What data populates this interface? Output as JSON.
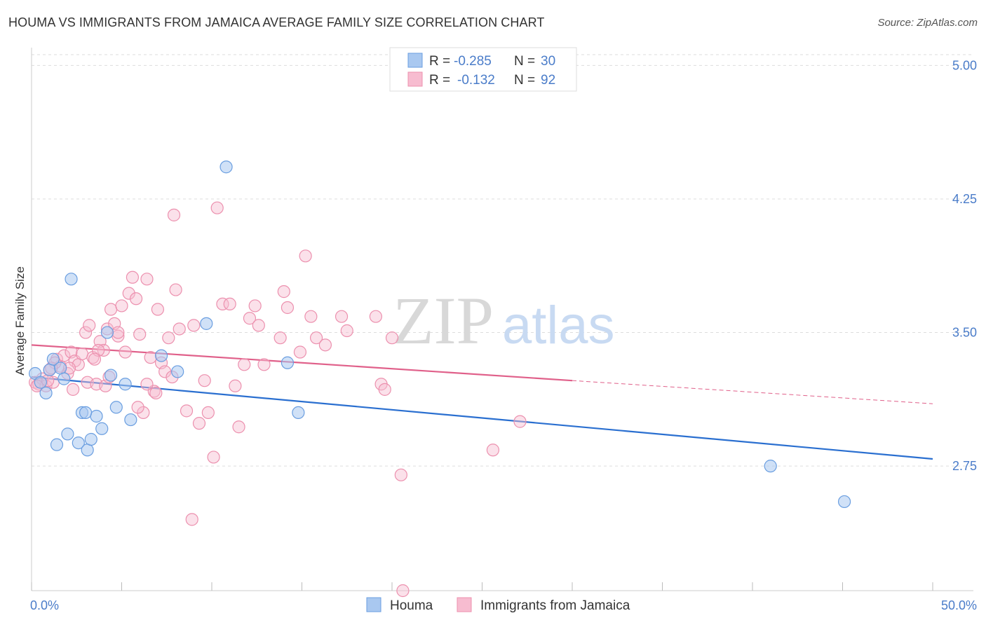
{
  "header": {
    "title": "HOUMA VS IMMIGRANTS FROM JAMAICA AVERAGE FAMILY SIZE CORRELATION CHART",
    "source": "Source: ZipAtlas.com"
  },
  "watermark": {
    "zip": "ZIP",
    "atlas": "atlas"
  },
  "colors": {
    "houma_fill": "#a9c8f0",
    "houma_stroke": "#6a9ee0",
    "houma_line": "#2a6fd0",
    "jamaica_fill": "#f7bcd0",
    "jamaica_stroke": "#ec90ae",
    "jamaica_line": "#e0608a",
    "grid": "#dddddd",
    "axis_text": "#4a7cc9"
  },
  "legend": {
    "houma": {
      "r_label": "R =",
      "r_value": "-0.285",
      "n_label": "N =",
      "n_value": "30"
    },
    "jamaica": {
      "r_label": "R =",
      "r_value": "-0.132",
      "n_label": "N =",
      "n_value": "92"
    }
  },
  "chart_data": {
    "type": "scatter",
    "title": "HOUMA VS IMMIGRANTS FROM JAMAICA AVERAGE FAMILY SIZE CORRELATION CHART",
    "xlabel": "",
    "ylabel": "Average Family Size",
    "xlim": [
      0,
      50
    ],
    "ylim": [
      2.05,
      5.1
    ],
    "x_tick_labels": [
      "0.0%",
      "50.0%"
    ],
    "y_ticks": [
      2.75,
      3.5,
      4.25,
      5.0
    ],
    "y_tick_labels": [
      "2.75",
      "3.50",
      "4.25",
      "5.00"
    ],
    "legend_position": "top-center",
    "series": [
      {
        "name": "Houma",
        "points": [
          [
            0.2,
            3.27
          ],
          [
            0.5,
            3.22
          ],
          [
            0.8,
            3.16
          ],
          [
            1.0,
            3.29
          ],
          [
            1.2,
            3.35
          ],
          [
            1.4,
            2.87
          ],
          [
            1.6,
            3.3
          ],
          [
            1.8,
            3.24
          ],
          [
            2.0,
            2.93
          ],
          [
            2.2,
            3.8
          ],
          [
            2.6,
            2.88
          ],
          [
            2.8,
            3.05
          ],
          [
            3.1,
            2.84
          ],
          [
            3.3,
            2.9
          ],
          [
            3.6,
            3.03
          ],
          [
            3.9,
            2.96
          ],
          [
            4.2,
            3.5
          ],
          [
            4.4,
            3.26
          ],
          [
            4.7,
            3.08
          ],
          [
            5.2,
            3.21
          ],
          [
            5.5,
            3.01
          ],
          [
            7.2,
            3.37
          ],
          [
            8.1,
            3.28
          ],
          [
            9.7,
            3.55
          ],
          [
            10.8,
            4.43
          ],
          [
            14.2,
            3.33
          ],
          [
            14.8,
            3.05
          ],
          [
            3.0,
            3.05
          ],
          [
            41.0,
            2.75
          ],
          [
            45.1,
            2.55
          ]
        ],
        "trend": {
          "x": [
            0,
            50
          ],
          "y": [
            3.25,
            2.79
          ]
        }
      },
      {
        "name": "Immigrants from Jamaica",
        "points": [
          [
            0.2,
            3.22
          ],
          [
            0.4,
            3.21
          ],
          [
            0.6,
            3.24
          ],
          [
            0.8,
            3.2
          ],
          [
            1.0,
            3.29
          ],
          [
            1.2,
            3.22
          ],
          [
            1.4,
            3.35
          ],
          [
            1.6,
            3.31
          ],
          [
            1.8,
            3.37
          ],
          [
            2.0,
            3.27
          ],
          [
            2.2,
            3.39
          ],
          [
            2.4,
            3.34
          ],
          [
            2.6,
            3.32
          ],
          [
            2.8,
            3.38
          ],
          [
            3.0,
            3.5
          ],
          [
            3.1,
            3.22
          ],
          [
            3.2,
            3.54
          ],
          [
            3.4,
            3.36
          ],
          [
            3.6,
            3.21
          ],
          [
            3.8,
            3.45
          ],
          [
            4.0,
            3.4
          ],
          [
            4.2,
            3.52
          ],
          [
            4.4,
            3.63
          ],
          [
            4.6,
            3.55
          ],
          [
            4.8,
            3.48
          ],
          [
            5.0,
            3.65
          ],
          [
            5.2,
            3.39
          ],
          [
            5.4,
            3.72
          ],
          [
            5.6,
            3.81
          ],
          [
            5.8,
            3.69
          ],
          [
            6.0,
            3.49
          ],
          [
            6.2,
            3.05
          ],
          [
            6.4,
            3.8
          ],
          [
            6.6,
            3.36
          ],
          [
            6.8,
            3.17
          ],
          [
            7.0,
            3.63
          ],
          [
            7.2,
            3.33
          ],
          [
            7.4,
            3.28
          ],
          [
            7.6,
            3.47
          ],
          [
            7.8,
            3.25
          ],
          [
            8.0,
            3.74
          ],
          [
            8.2,
            3.52
          ],
          [
            8.6,
            3.06
          ],
          [
            8.9,
            2.45
          ],
          [
            9.0,
            3.54
          ],
          [
            9.3,
            2.99
          ],
          [
            9.6,
            3.23
          ],
          [
            9.8,
            3.05
          ],
          [
            10.1,
            2.8
          ],
          [
            10.3,
            4.2
          ],
          [
            10.6,
            3.66
          ],
          [
            11.0,
            3.66
          ],
          [
            11.3,
            3.2
          ],
          [
            11.5,
            2.97
          ],
          [
            11.8,
            3.32
          ],
          [
            12.1,
            3.58
          ],
          [
            12.4,
            3.65
          ],
          [
            12.6,
            3.54
          ],
          [
            13.8,
            3.47
          ],
          [
            14.0,
            3.73
          ],
          [
            14.2,
            3.64
          ],
          [
            14.9,
            3.39
          ],
          [
            15.2,
            3.93
          ],
          [
            15.5,
            3.59
          ],
          [
            15.8,
            3.47
          ],
          [
            16.3,
            3.43
          ],
          [
            17.2,
            3.59
          ],
          [
            17.5,
            3.51
          ],
          [
            19.1,
            3.59
          ],
          [
            19.4,
            3.21
          ],
          [
            19.6,
            3.18
          ],
          [
            20.0,
            3.47
          ],
          [
            20.5,
            2.7
          ],
          [
            20.6,
            2.05
          ],
          [
            25.6,
            2.84
          ],
          [
            27.1,
            3.0
          ],
          [
            4.8,
            3.5
          ],
          [
            6.9,
            3.16
          ],
          [
            2.1,
            3.3
          ],
          [
            5.9,
            3.08
          ],
          [
            7.9,
            4.16
          ],
          [
            1.3,
            3.33
          ],
          [
            3.7,
            3.4
          ],
          [
            4.1,
            3.2
          ],
          [
            0.9,
            3.23
          ],
          [
            12.9,
            3.32
          ],
          [
            6.4,
            3.21
          ],
          [
            2.3,
            3.18
          ],
          [
            1.1,
            3.3
          ],
          [
            3.5,
            3.35
          ],
          [
            4.3,
            3.25
          ],
          [
            0.3,
            3.2
          ]
        ],
        "trend": {
          "x": [
            0,
            30
          ],
          "y": [
            3.43,
            3.23
          ]
        },
        "trend_dashed": {
          "x": [
            30,
            50
          ],
          "y": [
            3.23,
            3.1
          ]
        }
      }
    ]
  },
  "bottom_legend": {
    "houma": "Houma",
    "jamaica": "Immigrants from Jamaica"
  }
}
